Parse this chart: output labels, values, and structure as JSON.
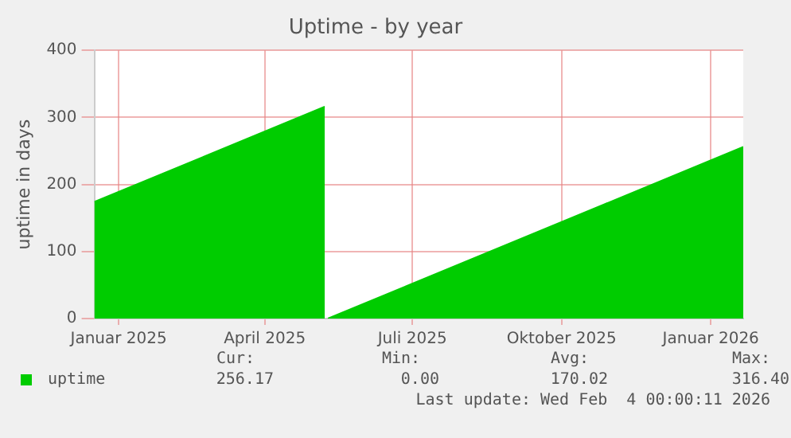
{
  "chart_data": {
    "type": "area",
    "title": "Uptime - by year",
    "ylabel": "uptime in days",
    "x": [
      "2024-12-17",
      "2025-05-08",
      "2025-05-09",
      "2025-05-10",
      "2026-01-21"
    ],
    "series": [
      {
        "name": "uptime",
        "color": "#00cc00",
        "values": [
          174,
          316,
          null,
          0,
          256
        ]
      }
    ],
    "xlim": [
      "2024-12-17",
      "2026-01-21"
    ],
    "xticks": [
      {
        "value": "2025-01-01",
        "label": "Januar 2025"
      },
      {
        "value": "2025-04-01",
        "label": "April 2025"
      },
      {
        "value": "2025-07-01",
        "label": "Juli 2025"
      },
      {
        "value": "2025-10-01",
        "label": "Oktober 2025"
      },
      {
        "value": "2026-01-01",
        "label": "Januar 2026"
      }
    ],
    "ylim": [
      0,
      400
    ],
    "yticks": [
      0,
      100,
      200,
      300,
      400
    ],
    "grid": true,
    "legend": "bottom left",
    "annotations": [
      "Cur:",
      "Min:",
      "Avg:",
      "Max:",
      "256.17",
      "0.00",
      "170.02",
      "316.40",
      "Last update: Wed Feb  4 00:00:11 2026"
    ]
  }
}
